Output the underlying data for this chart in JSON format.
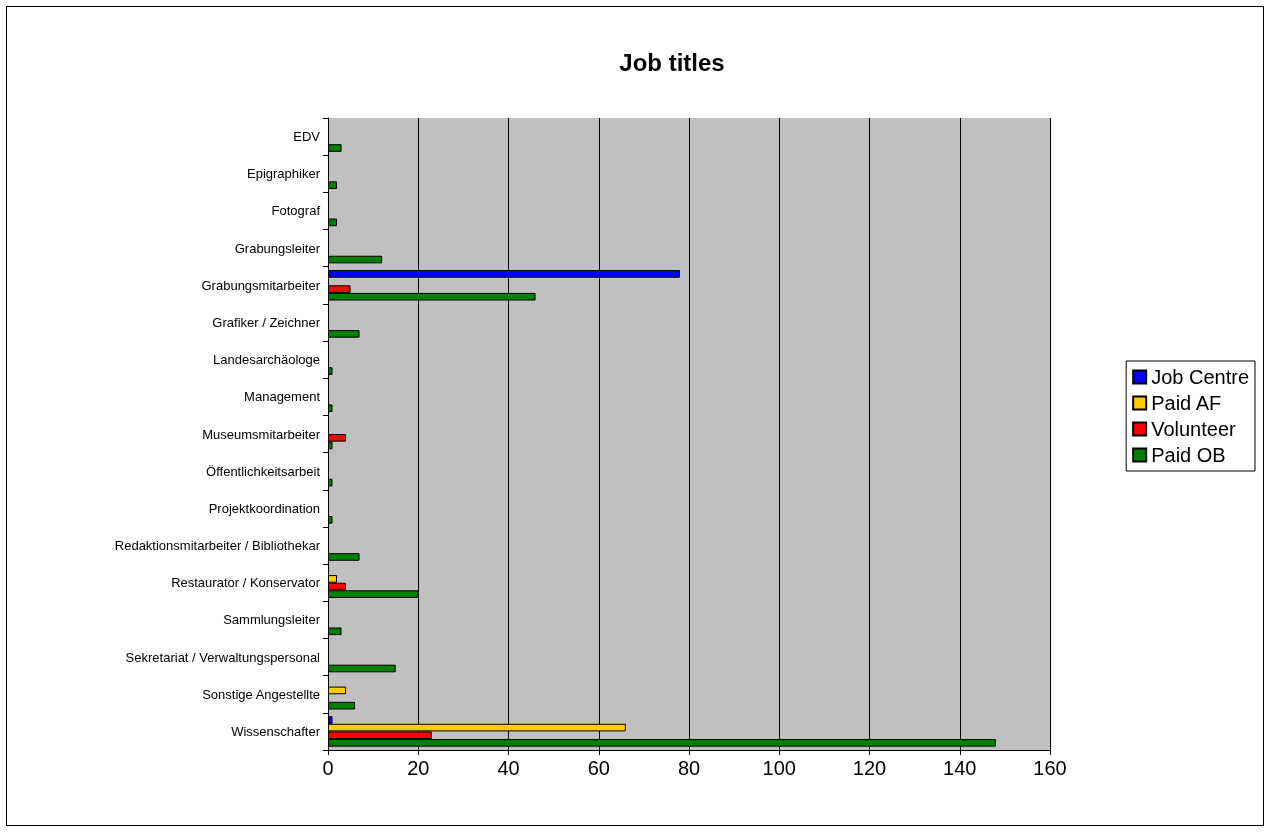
{
  "chart_data": {
    "type": "bar",
    "title": "Job titles",
    "orientation": "horizontal",
    "categories": [
      "EDV",
      "Epigraphiker",
      "Fotograf",
      "Grabungsleiter",
      "Grabungsmitarbeiter",
      "Grafiker / Zeichner",
      "Landesarchäologe",
      "Management",
      "Museumsmitarbeiter",
      "Öffentlichkeitsarbeit",
      "Projektkoordination",
      "Redaktionsmitarbeiter / Bibliothekar",
      "Restaurator / Konservator",
      "Sammlungsleiter",
      "Sekretariat / Verwaltungspersonal",
      "Sonstige Angestellte",
      "Wissenschafter"
    ],
    "series": [
      {
        "name": "Job Centre",
        "color": "#0000ff",
        "values": [
          null,
          null,
          null,
          null,
          78,
          null,
          null,
          null,
          null,
          null,
          null,
          null,
          null,
          null,
          null,
          null,
          1
        ]
      },
      {
        "name": "Paid AF",
        "color": "#ffcc00",
        "values": [
          null,
          null,
          null,
          null,
          null,
          null,
          null,
          null,
          null,
          null,
          null,
          null,
          2,
          null,
          null,
          4,
          66
        ]
      },
      {
        "name": "Volunteer",
        "color": "#ff0000",
        "values": [
          null,
          null,
          null,
          null,
          5,
          null,
          null,
          null,
          4,
          null,
          null,
          null,
          4,
          null,
          null,
          null,
          23
        ]
      },
      {
        "name": "Paid OB",
        "color": "#008000",
        "values": [
          3,
          2,
          2,
          12,
          46,
          7,
          1,
          1,
          1,
          1,
          1,
          7,
          20,
          3,
          15,
          6,
          148
        ]
      }
    ],
    "xlim": [
      0,
      160
    ],
    "xticks": [
      0,
      20,
      40,
      60,
      80,
      100,
      120,
      140,
      160
    ],
    "grid": "x",
    "legend": "right"
  }
}
